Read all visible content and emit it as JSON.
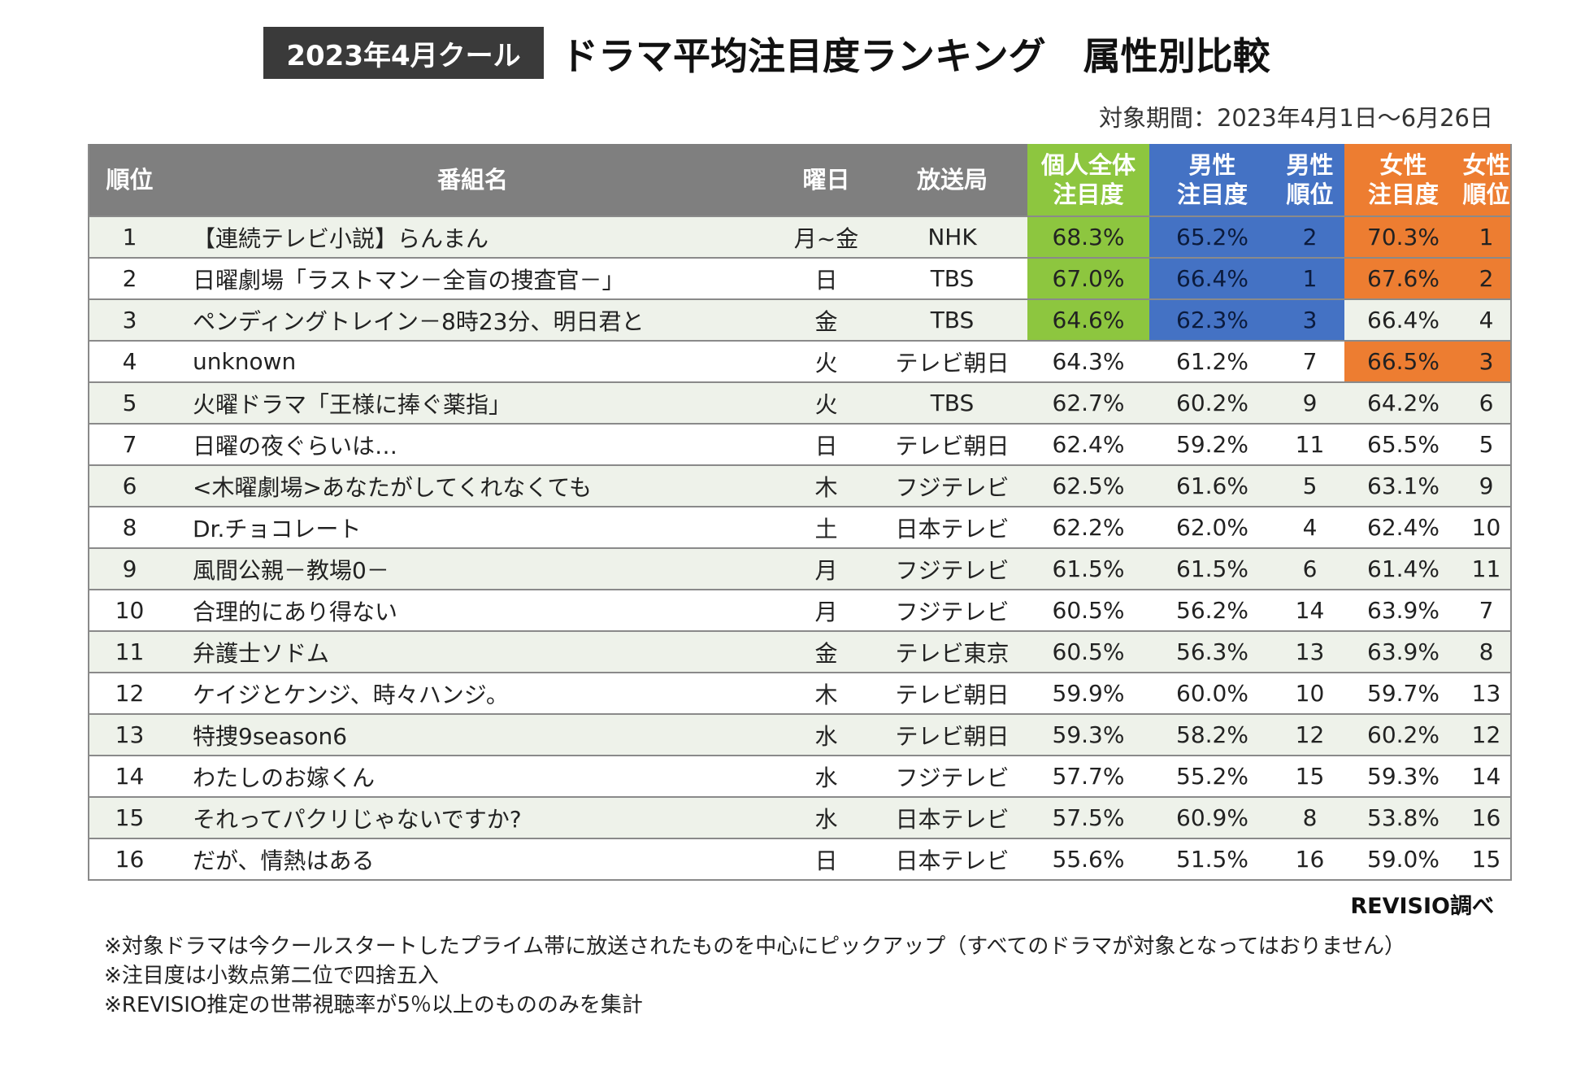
{
  "badge": "2023年4月クール",
  "title": "ドラマ平均注目度ランキング　属性別比較",
  "period": "対象期間：2023年4月1日～6月26日",
  "source": "REVISIO調べ",
  "notes": [
    "※対象ドラマは今クールスタートしたプライム帯に放送されたものを中心にピックアップ（すべてのドラマが対象となってはおりません）",
    "※注目度は小数点第二位で四捨五入",
    "※REVISIO推定の世帯視聴率が5％以上のもののみを集計"
  ],
  "colors": {
    "header_gray": "#7f7f7f",
    "total": "#8dc63f",
    "male": "#4472c4",
    "female": "#ed7d31",
    "badge": "#3a3a3a"
  },
  "chart_data": {
    "type": "table",
    "title": "ドラマ平均注目度ランキング　属性別比較",
    "columns": [
      {
        "key": "rank",
        "label": "順位",
        "label_lines": [
          "順位"
        ]
      },
      {
        "key": "name",
        "label": "番組名",
        "label_lines": [
          "番組名"
        ]
      },
      {
        "key": "day",
        "label": "曜日",
        "label_lines": [
          "曜日"
        ]
      },
      {
        "key": "station",
        "label": "放送局",
        "label_lines": [
          "放送局"
        ]
      },
      {
        "key": "total",
        "label": "個人全体注目度",
        "label_lines": [
          "個人全体",
          "注目度"
        ]
      },
      {
        "key": "male",
        "label": "男性注目度",
        "label_lines": [
          "男性",
          "注目度"
        ]
      },
      {
        "key": "male_rank",
        "label": "男性順位",
        "label_lines": [
          "男性",
          "順位"
        ]
      },
      {
        "key": "female",
        "label": "女性注目度",
        "label_lines": [
          "女性",
          "注目度"
        ]
      },
      {
        "key": "female_rank",
        "label": "女性順位",
        "label_lines": [
          "女性",
          "順位"
        ]
      }
    ],
    "rows": [
      {
        "rank": "1",
        "name": "【連続テレビ小説】らんまん",
        "day": "月~金",
        "station": "NHK",
        "total": "68.3%",
        "male": "65.2%",
        "male_rank": "2",
        "female": "70.3%",
        "female_rank": "1"
      },
      {
        "rank": "2",
        "name": "日曜劇場「ラストマン－全盲の捜査官－」",
        "day": "日",
        "station": "TBS",
        "total": "67.0%",
        "male": "66.4%",
        "male_rank": "1",
        "female": "67.6%",
        "female_rank": "2"
      },
      {
        "rank": "3",
        "name": "ペンディングトレイン－8時23分、明日君と",
        "day": "金",
        "station": "TBS",
        "total": "64.6%",
        "male": "62.3%",
        "male_rank": "3",
        "female": "66.4%",
        "female_rank": "4"
      },
      {
        "rank": "4",
        "name": "unknown",
        "day": "火",
        "station": "テレビ朝日",
        "total": "64.3%",
        "male": "61.2%",
        "male_rank": "7",
        "female": "66.5%",
        "female_rank": "3"
      },
      {
        "rank": "5",
        "name": "火曜ドラマ「王様に捧ぐ薬指」",
        "day": "火",
        "station": "TBS",
        "total": "62.7%",
        "male": "60.2%",
        "male_rank": "9",
        "female": "64.2%",
        "female_rank": "6"
      },
      {
        "rank": "7",
        "name": "日曜の夜ぐらいは…",
        "day": "日",
        "station": "テレビ朝日",
        "total": "62.4%",
        "male": "59.2%",
        "male_rank": "11",
        "female": "65.5%",
        "female_rank": "5"
      },
      {
        "rank": "6",
        "name": "<木曜劇場>あなたがしてくれなくても",
        "day": "木",
        "station": "フジテレビ",
        "total": "62.5%",
        "male": "61.6%",
        "male_rank": "5",
        "female": "63.1%",
        "female_rank": "9"
      },
      {
        "rank": "8",
        "name": "Dr.チョコレート",
        "day": "土",
        "station": "日本テレビ",
        "total": "62.2%",
        "male": "62.0%",
        "male_rank": "4",
        "female": "62.4%",
        "female_rank": "10"
      },
      {
        "rank": "9",
        "name": "風間公親－教場0－",
        "day": "月",
        "station": "フジテレビ",
        "total": "61.5%",
        "male": "61.5%",
        "male_rank": "6",
        "female": "61.4%",
        "female_rank": "11"
      },
      {
        "rank": "10",
        "name": "合理的にあり得ない",
        "day": "月",
        "station": "フジテレビ",
        "total": "60.5%",
        "male": "56.2%",
        "male_rank": "14",
        "female": "63.9%",
        "female_rank": "7"
      },
      {
        "rank": "11",
        "name": "弁護士ソドム",
        "day": "金",
        "station": "テレビ東京",
        "total": "60.5%",
        "male": "56.3%",
        "male_rank": "13",
        "female": "63.9%",
        "female_rank": "8"
      },
      {
        "rank": "12",
        "name": "ケイジとケンジ、時々ハンジ。",
        "day": "木",
        "station": "テレビ朝日",
        "total": "59.9%",
        "male": "60.0%",
        "male_rank": "10",
        "female": "59.7%",
        "female_rank": "13"
      },
      {
        "rank": "13",
        "name": "特捜9season6",
        "day": "水",
        "station": "テレビ朝日",
        "total": "59.3%",
        "male": "58.2%",
        "male_rank": "12",
        "female": "60.2%",
        "female_rank": "12"
      },
      {
        "rank": "14",
        "name": "わたしのお嫁くん",
        "day": "水",
        "station": "フジテレビ",
        "total": "57.7%",
        "male": "55.2%",
        "male_rank": "15",
        "female": "59.3%",
        "female_rank": "14"
      },
      {
        "rank": "15",
        "name": "それってパクリじゃないですか?",
        "day": "水",
        "station": "日本テレビ",
        "total": "57.5%",
        "male": "60.9%",
        "male_rank": "8",
        "female": "53.8%",
        "female_rank": "16"
      },
      {
        "rank": "16",
        "name": "だが、情熱はある",
        "day": "日",
        "station": "日本テレビ",
        "total": "55.6%",
        "male": "51.5%",
        "male_rank": "16",
        "female": "59.0%",
        "female_rank": "15"
      }
    ],
    "highlights": {
      "total": [
        0,
        1,
        2
      ],
      "male": [
        0,
        1,
        2
      ],
      "female": [
        0,
        1,
        3
      ]
    }
  }
}
